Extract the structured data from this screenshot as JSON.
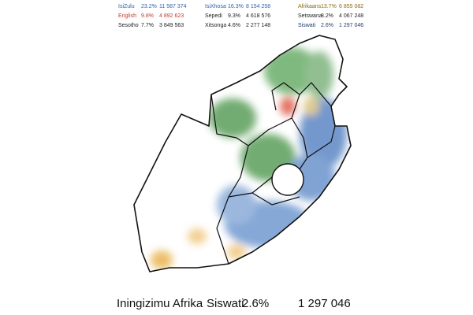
{
  "legend": {
    "rows": [
      [
        {
          "name": "IsiZulu",
          "percent": "23.2%",
          "count": "11 587 374",
          "color": "#2f5fae"
        },
        {
          "name": "IsiXhosa",
          "percent": "16.3%",
          "count": "8 154 258",
          "color": "#2f5fae"
        },
        {
          "name": "Afrikaans",
          "percent": "13.7%",
          "count": "6 855 082",
          "color": "#8a6a12"
        }
      ],
      [
        {
          "name": "English",
          "percent": "9.8%",
          "count": "4 892 623",
          "color": "#c0392b"
        },
        {
          "name": "Sepedi",
          "percent": "9.3%",
          "count": "4 618 576",
          "color": "#222222"
        },
        {
          "name": "Setswana",
          "percent": "8.2%",
          "count": "4 067 248",
          "color": "#222222"
        }
      ],
      [
        {
          "name": "Sesotho",
          "percent": "7.7%",
          "count": "3 849 563",
          "color": "#222222"
        },
        {
          "name": "Xitsonga",
          "percent": "4.6%",
          "count": "2 277 148",
          "color": "#222222"
        },
        {
          "name": "Siswati",
          "percent": "2.6%",
          "count": "1 297 046",
          "color": "#1f3b6e"
        }
      ]
    ]
  },
  "footer": {
    "country": "Iningizimu Afrika",
    "language": "Siswati",
    "percent": "2.6%",
    "count": "1 297 046"
  }
}
